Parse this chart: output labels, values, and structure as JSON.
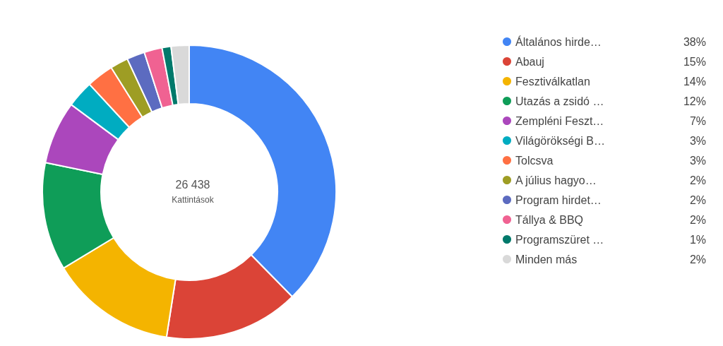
{
  "chart_data": {
    "type": "donut",
    "title": "26 438",
    "subtitle": "Kattintások",
    "categories": [
      "Általános hirde…",
      "Abauj",
      "Fesztiválkatlan",
      "Utazás a zsidó …",
      "Zempléni Feszt…",
      "Világörökségi B…",
      "Tolcsva",
      "A július hagyo…",
      "Program hirdet…",
      "Tállya & BBQ",
      "Programszüret …",
      "Minden más"
    ],
    "values": [
      38,
      15,
      14,
      12,
      7,
      3,
      3,
      2,
      2,
      2,
      1,
      2
    ],
    "value_labels": [
      "38%",
      "15%",
      "14%",
      "12%",
      "7%",
      "3%",
      "3%",
      "2%",
      "2%",
      "2%",
      "1%",
      "2%"
    ],
    "colors": [
      "#4285f4",
      "#db4437",
      "#f4b400",
      "#0f9d58",
      "#ab47bc",
      "#00acc1",
      "#ff7043",
      "#9e9d24",
      "#5c6bc0",
      "#f06292",
      "#00796b",
      "#d9d9d9"
    ],
    "legend": "right"
  }
}
